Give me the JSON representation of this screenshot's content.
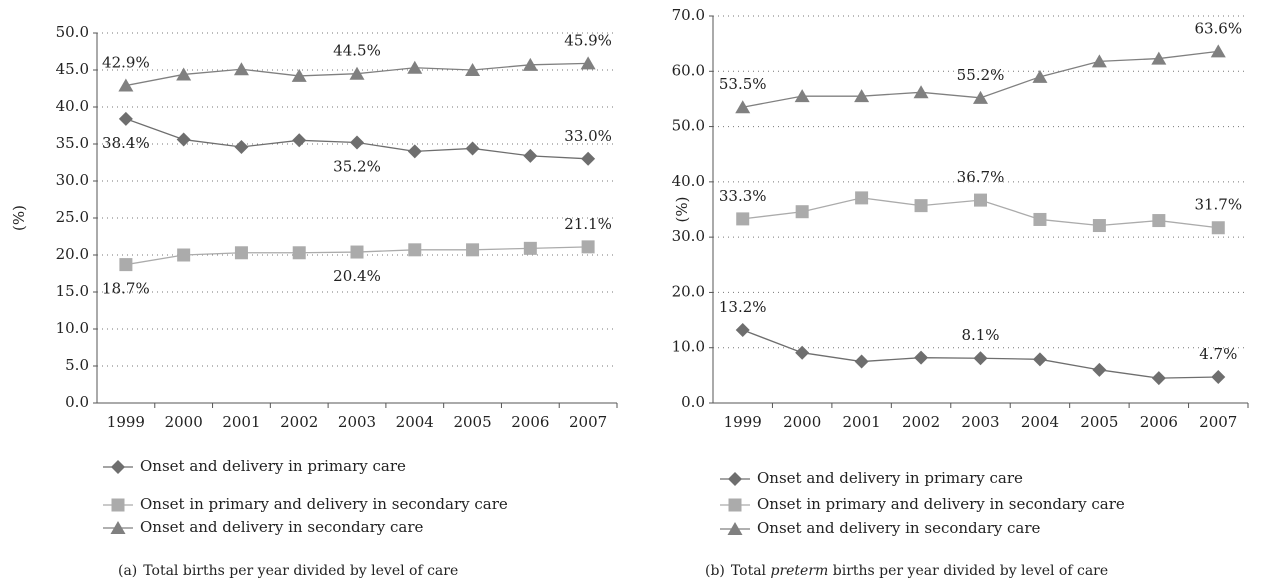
{
  "chart_data": [
    {
      "type": "line",
      "ylabel": "(%)",
      "caption": [
        {
          "text": "(a)"
        },
        {
          "text": "Total births per year divided by level of care"
        }
      ],
      "categories": [
        "1999",
        "2000",
        "2001",
        "2002",
        "2003",
        "2004",
        "2005",
        "2006",
        "2007"
      ],
      "ylim": [
        0,
        50
      ],
      "yticks": [
        {
          "value": 0,
          "label": "0.0"
        },
        {
          "value": 5,
          "label": "5.0"
        },
        {
          "value": 10,
          "label": "10.0"
        },
        {
          "value": 15,
          "label": "15.0"
        },
        {
          "value": 20,
          "label": "20.0"
        },
        {
          "value": 25,
          "label": "25.0"
        },
        {
          "value": 30,
          "label": "30.0"
        },
        {
          "value": 35,
          "label": "35.0"
        },
        {
          "value": 40,
          "label": "40.0"
        },
        {
          "value": 45,
          "label": "45.0"
        },
        {
          "value": 50,
          "label": "50.0"
        }
      ],
      "grid": true,
      "series": [
        {
          "name": "Onset and delivery in primary care",
          "color": "#6e6e6e",
          "marker": "diamond",
          "values": [
            38.4,
            35.6,
            34.6,
            35.5,
            35.2,
            34.0,
            34.4,
            33.4,
            33.0
          ],
          "value_labels": [
            "38.4%",
            null,
            null,
            null,
            "35.2%",
            null,
            null,
            null,
            "33.0%"
          ]
        },
        {
          "name": "Onset in primary and delivery in secondary care",
          "color": "#ababab",
          "marker": "square",
          "values": [
            18.7,
            20.0,
            20.3,
            20.3,
            20.4,
            20.7,
            20.7,
            20.9,
            21.1
          ],
          "value_labels": [
            "18.7%",
            null,
            null,
            null,
            "20.4%",
            null,
            null,
            null,
            "21.1%"
          ]
        },
        {
          "name": "Onset and delivery in secondary care",
          "color": "#808080",
          "marker": "triangle",
          "values": [
            42.9,
            44.4,
            45.1,
            44.2,
            44.5,
            45.3,
            45.0,
            45.7,
            45.9
          ],
          "value_labels": [
            "42.9%",
            null,
            null,
            null,
            "44.5%",
            null,
            null,
            null,
            "45.9%"
          ]
        }
      ]
    },
    {
      "type": "line",
      "ylabel": "(%)",
      "caption": [
        {
          "text": "(b)"
        },
        {
          "text": "Total "
        },
        {
          "text": "preterm",
          "italic": true
        },
        {
          "text": " births per year divided by level of care"
        }
      ],
      "categories": [
        "1999",
        "2000",
        "2001",
        "2002",
        "2003",
        "2004",
        "2005",
        "2006",
        "2007"
      ],
      "ylim": [
        0,
        70
      ],
      "yticks": [
        {
          "value": 0,
          "label": "0.0"
        },
        {
          "value": 10,
          "label": "10.0"
        },
        {
          "value": 20,
          "label": "20.0"
        },
        {
          "value": 30,
          "label": "30.0"
        },
        {
          "value": 40,
          "label": "40.0"
        },
        {
          "value": 50,
          "label": "50.0"
        },
        {
          "value": 60,
          "label": "60.0"
        },
        {
          "value": 70,
          "label": "70.0"
        }
      ],
      "grid": true,
      "series": [
        {
          "name": "Onset and delivery in primary care",
          "color": "#6e6e6e",
          "marker": "diamond",
          "values": [
            13.2,
            9.1,
            7.5,
            8.2,
            8.1,
            7.9,
            6.0,
            4.5,
            4.7
          ],
          "value_labels": [
            "13.2%",
            null,
            null,
            null,
            "8.1%",
            null,
            null,
            null,
            "4.7%"
          ]
        },
        {
          "name": "Onset in primary and delivery in secondary care",
          "color": "#ababab",
          "marker": "square",
          "values": [
            33.3,
            34.6,
            37.1,
            35.7,
            36.7,
            33.2,
            32.1,
            33.0,
            31.7
          ],
          "value_labels": [
            "33.3%",
            null,
            null,
            null,
            "36.7%",
            null,
            null,
            null,
            "31.7%"
          ]
        },
        {
          "name": "Onset and delivery in secondary care",
          "color": "#808080",
          "marker": "triangle",
          "values": [
            53.5,
            55.5,
            55.5,
            56.2,
            55.2,
            59.0,
            61.8,
            62.3,
            63.6
          ],
          "value_labels": [
            "53.5%",
            null,
            null,
            null,
            "55.2%",
            null,
            null,
            null,
            "63.6%"
          ]
        }
      ]
    }
  ]
}
